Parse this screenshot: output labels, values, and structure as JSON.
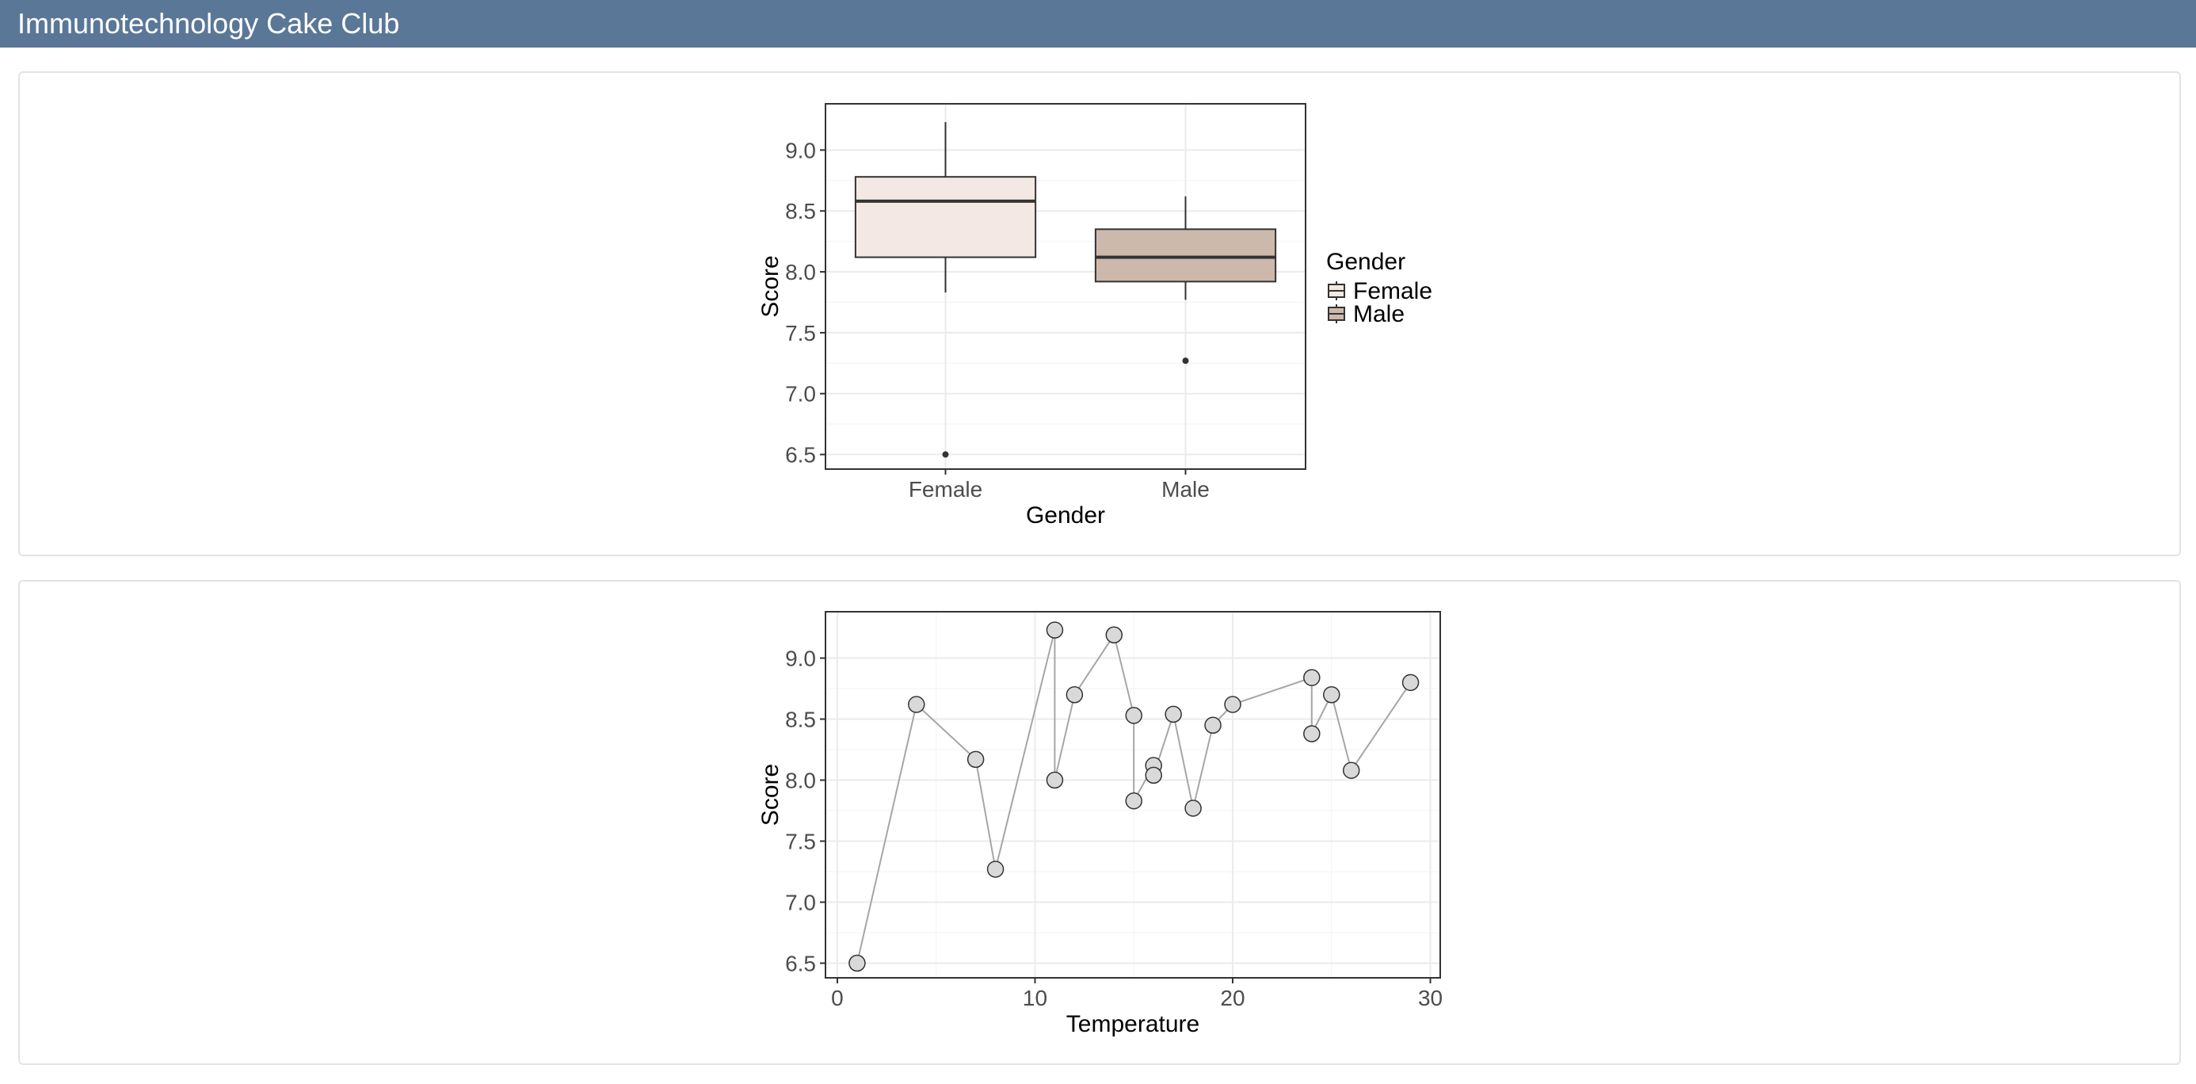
{
  "header": {
    "title": "Immunotechnology Cake Club"
  },
  "colors": {
    "navbar": "#5a7797",
    "female_fill": "#f3e8e3",
    "male_fill": "#cdb9ab",
    "point_fill": "#d9d9d9",
    "line": "#a6a6a6",
    "grid": "#ebebeb",
    "box_stroke": "#333333"
  },
  "chart_data": [
    {
      "type": "box",
      "xlabel": "Gender",
      "ylabel": "Score",
      "ylim": [
        6.38,
        9.38
      ],
      "yticks": [
        6.5,
        7.0,
        7.5,
        8.0,
        8.5,
        9.0
      ],
      "categories": [
        "Female",
        "Male"
      ],
      "boxes": [
        {
          "name": "Female",
          "whisker_low": 7.83,
          "q1": 8.12,
          "median": 8.58,
          "q3": 8.78,
          "whisker_high": 9.23,
          "outliers": [
            6.5
          ]
        },
        {
          "name": "Male",
          "whisker_low": 7.77,
          "q1": 7.92,
          "median": 8.12,
          "q3": 8.35,
          "whisker_high": 8.62,
          "outliers": [
            7.27
          ]
        }
      ],
      "legend": {
        "title": "Gender",
        "entries": [
          "Female",
          "Male"
        ],
        "placement": "right"
      },
      "grid": true
    },
    {
      "type": "line",
      "xlabel": "Temperature",
      "ylabel": "Score",
      "xlim": [
        -0.6,
        30.5
      ],
      "ylim": [
        6.38,
        9.38
      ],
      "xticks": [
        0,
        10,
        20,
        30
      ],
      "yticks": [
        6.5,
        7.0,
        7.5,
        8.0,
        8.5,
        9.0
      ],
      "markers": true,
      "grid": true,
      "points": [
        [
          1,
          6.5
        ],
        [
          4,
          8.62
        ],
        [
          7,
          8.17
        ],
        [
          8,
          7.27
        ],
        [
          11,
          9.23
        ],
        [
          11,
          8.0
        ],
        [
          12,
          8.7
        ],
        [
          14,
          9.19
        ],
        [
          15,
          8.53
        ],
        [
          15,
          7.83
        ],
        [
          16,
          8.12
        ],
        [
          16,
          8.04
        ],
        [
          17,
          8.54
        ],
        [
          18,
          7.77
        ],
        [
          19,
          8.45
        ],
        [
          20,
          8.62
        ],
        [
          24,
          8.84
        ],
        [
          24,
          8.38
        ],
        [
          25,
          8.7
        ],
        [
          26,
          8.08
        ],
        [
          29,
          8.8
        ]
      ]
    }
  ]
}
